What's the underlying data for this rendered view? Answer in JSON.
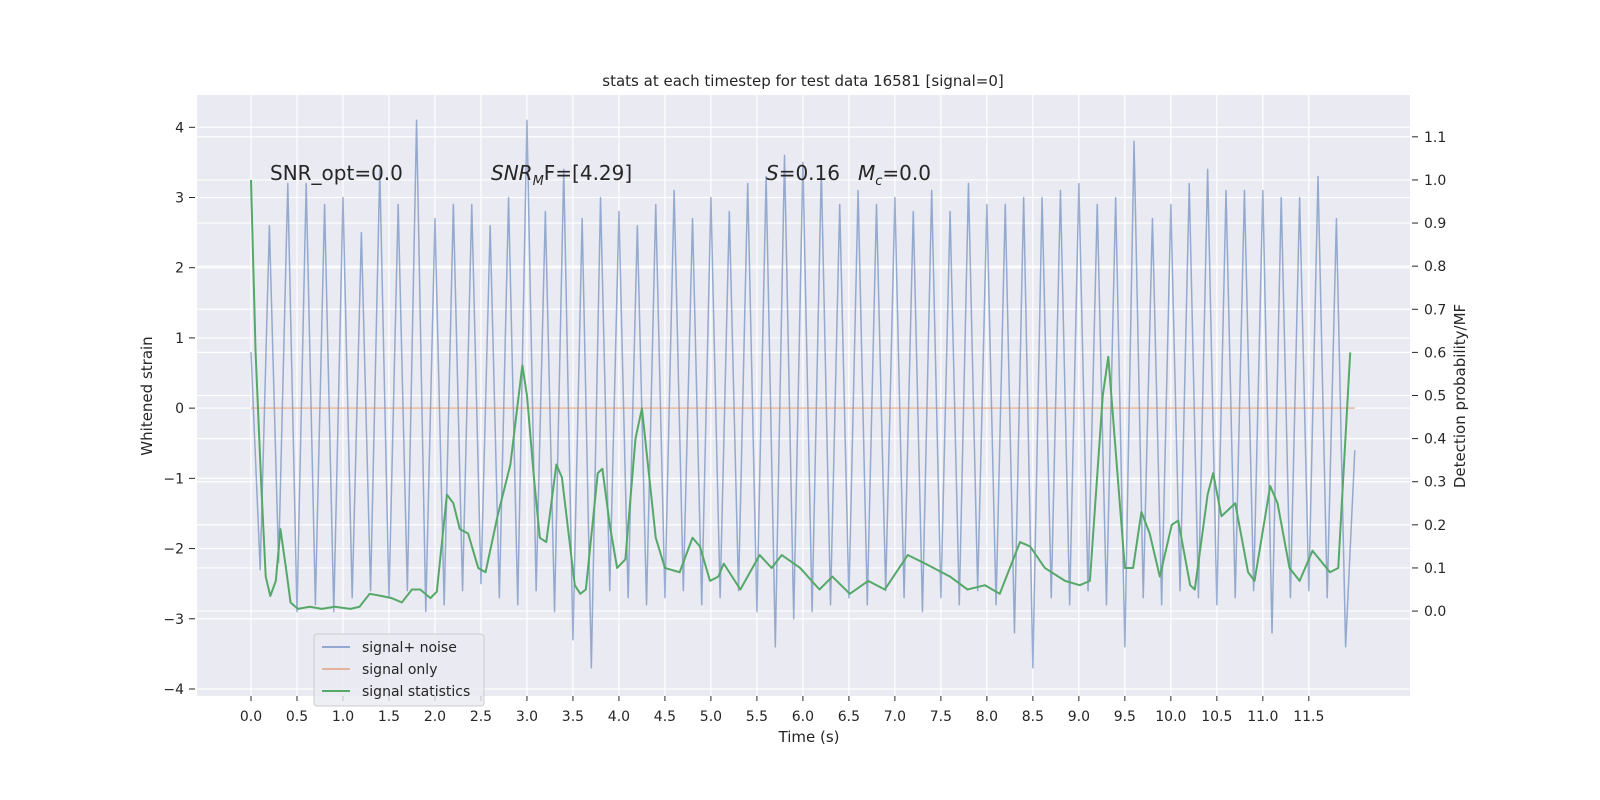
{
  "chart_data": {
    "type": "line",
    "title": "stats at each timestep for test data 16581 [signal=0]",
    "xlabel": "Time (s)",
    "ylabel": "Whitened strain",
    "y2label": "Detection probability/MF",
    "xlim": [
      -0.587,
      12.6
    ],
    "ylim": [
      -4.1,
      4.46
    ],
    "y2lim": [
      -0.197,
      1.197
    ],
    "grid": true,
    "legend": "lower left",
    "xticks": [
      {
        "value": 0,
        "label": "0.0"
      },
      {
        "value": 0.5,
        "label": "0.5"
      },
      {
        "value": 1,
        "label": "1.0"
      },
      {
        "value": 1.5,
        "label": "1.5"
      },
      {
        "value": 2,
        "label": "2.0"
      },
      {
        "value": 2.5,
        "label": "2.5"
      },
      {
        "value": 3,
        "label": "3.0"
      },
      {
        "value": 3.5,
        "label": "3.5"
      },
      {
        "value": 4,
        "label": "4.0"
      },
      {
        "value": 4.5,
        "label": "4.5"
      },
      {
        "value": 5,
        "label": "5.0"
      },
      {
        "value": 5.5,
        "label": "5.5"
      },
      {
        "value": 6,
        "label": "6.0"
      },
      {
        "value": 6.5,
        "label": "6.5"
      },
      {
        "value": 7,
        "label": "7.0"
      },
      {
        "value": 7.5,
        "label": "7.5"
      },
      {
        "value": 8,
        "label": "8.0"
      },
      {
        "value": 8.5,
        "label": "8.5"
      },
      {
        "value": 9,
        "label": "9.0"
      },
      {
        "value": 9.5,
        "label": "9.5"
      },
      {
        "value": 10,
        "label": "10.0"
      },
      {
        "value": 10.5,
        "label": "10.5"
      },
      {
        "value": 11,
        "label": "11.0"
      },
      {
        "value": 11.5,
        "label": "11.5"
      }
    ],
    "yticks": [
      {
        "value": -4,
        "label": "−4"
      },
      {
        "value": -3,
        "label": "−3"
      },
      {
        "value": -2,
        "label": "−2"
      },
      {
        "value": -1,
        "label": "−1"
      },
      0,
      1,
      2,
      3,
      4
    ],
    "y2ticks": [
      {
        "value": 0,
        "label": "0.0"
      },
      {
        "value": 0.1,
        "label": "0.1"
      },
      {
        "value": 0.2,
        "label": "0.2"
      },
      {
        "value": 0.3,
        "label": "0.3"
      },
      {
        "value": 0.4,
        "label": "0.4"
      },
      {
        "value": 0.5,
        "label": "0.5"
      },
      {
        "value": 0.6,
        "label": "0.6"
      },
      {
        "value": 0.7,
        "label": "0.7"
      },
      {
        "value": 0.8,
        "label": "0.8"
      },
      {
        "value": 0.9,
        "label": "0.9"
      },
      {
        "value": 1,
        "label": "1.0"
      },
      {
        "value": 1.1,
        "label": "1.1"
      }
    ],
    "annotations": [
      {
        "parts": [
          "SNR_opt=0.0"
        ]
      },
      {
        "parts": [
          "SNR",
          "M",
          "F=[4.29]"
        ]
      },
      {
        "parts": [
          "S",
          "=0.16"
        ]
      },
      {
        "parts": [
          "M",
          "c",
          "=0.0"
        ]
      }
    ],
    "series": [
      {
        "name": "signal+ noise",
        "color": "#4c72b0",
        "x": [
          0,
          0.1,
          0.2,
          0.3,
          0.4,
          0.5,
          0.6,
          0.7,
          0.8,
          0.9,
          1,
          1.1,
          1.2,
          1.3,
          1.4,
          1.5,
          1.6,
          1.7,
          1.8,
          1.9,
          2,
          2.1,
          2.2,
          2.3,
          2.4,
          2.5,
          2.6,
          2.7,
          2.8,
          2.9,
          3,
          3.1,
          3.2,
          3.3,
          3.4,
          3.5,
          3.6,
          3.7,
          3.8,
          3.9,
          4,
          4.1,
          4.2,
          4.3,
          4.4,
          4.5,
          4.6,
          4.7,
          4.8,
          4.9,
          5,
          5.1,
          5.2,
          5.3,
          5.4,
          5.5,
          5.6,
          5.7,
          5.8,
          5.9,
          6,
          6.1,
          6.2,
          6.3,
          6.4,
          6.5,
          6.6,
          6.7,
          6.8,
          6.9,
          7,
          7.1,
          7.2,
          7.3,
          7.4,
          7.5,
          7.6,
          7.7,
          7.8,
          7.9,
          8,
          8.1,
          8.2,
          8.3,
          8.4,
          8.5,
          8.6,
          8.7,
          8.8,
          8.9,
          9,
          9.1,
          9.2,
          9.3,
          9.4,
          9.5,
          9.6,
          9.7,
          9.8,
          9.9,
          10,
          10.1,
          10.2,
          10.3,
          10.4,
          10.5,
          10.6,
          10.7,
          10.8,
          10.9,
          11,
          11.1,
          11.2,
          11.3,
          11.4,
          11.5,
          11.6,
          11.7,
          11.8,
          11.9,
          12
        ],
        "values": [
          0.8,
          -2.3,
          2.6,
          -2.2,
          3.2,
          -2.9,
          3.2,
          -2.8,
          2.9,
          -2.9,
          3.0,
          -2.7,
          2.5,
          -2.6,
          3.4,
          -2.7,
          2.9,
          -2.6,
          4.1,
          -2.9,
          2.7,
          -2.8,
          2.9,
          -2.6,
          2.9,
          -2.5,
          2.6,
          -2.7,
          3.0,
          -2.8,
          4.1,
          -2.6,
          2.8,
          -2.9,
          3.4,
          -3.3,
          2.7,
          -3.7,
          3.0,
          -2.6,
          2.8,
          -2.7,
          2.6,
          -2.8,
          2.9,
          -2.7,
          3.1,
          -2.6,
          2.7,
          -2.8,
          3.0,
          -2.7,
          2.8,
          -2.6,
          3.2,
          -2.9,
          3.3,
          -3.4,
          3.6,
          -3.0,
          3.5,
          -2.9,
          3.4,
          -2.8,
          2.9,
          -2.7,
          3.1,
          -2.8,
          2.9,
          -2.6,
          3.0,
          -2.7,
          2.8,
          -2.9,
          3.1,
          -2.7,
          2.8,
          -2.8,
          3.2,
          -2.6,
          2.9,
          -2.8,
          2.9,
          -3.2,
          3.0,
          -3.7,
          3.0,
          -2.7,
          3.1,
          -2.8,
          3.2,
          -2.6,
          2.9,
          -2.8,
          3.0,
          -3.4,
          3.8,
          -2.7,
          2.7,
          -2.8,
          2.9,
          -2.6,
          3.2,
          -2.7,
          3.4,
          -2.8,
          3.1,
          -2.7,
          3.1,
          -2.6,
          3.1,
          -3.2,
          3.0,
          -2.7,
          3.0,
          -2.6,
          3.3,
          -2.7,
          2.7,
          -3.4,
          -0.6
        ]
      },
      {
        "name": "signal only",
        "color": "#dd8452",
        "x": [
          0,
          12
        ],
        "values": [
          0,
          0
        ]
      },
      {
        "name": "signal statistics",
        "color": "#55a868",
        "axis": "y2",
        "x": [
          0,
          0.05,
          0.11,
          0.16,
          0.21,
          0.27,
          0.32,
          0.38,
          0.43,
          0.51,
          0.64,
          0.77,
          0.91,
          1.08,
          1.18,
          1.29,
          1.42,
          1.53,
          1.64,
          1.75,
          1.84,
          1.95,
          2.02,
          2.13,
          2.2,
          2.27,
          2.36,
          2.47,
          2.55,
          2.68,
          2.82,
          2.95,
          3.0,
          3.08,
          3.14,
          3.21,
          3.32,
          3.38,
          3.52,
          3.58,
          3.64,
          3.77,
          3.82,
          3.9,
          3.98,
          4.07,
          4.18,
          4.25,
          4.4,
          4.5,
          4.66,
          4.8,
          4.88,
          4.99,
          5.08,
          5.14,
          5.32,
          5.53,
          5.66,
          5.77,
          5.97,
          6.18,
          6.32,
          6.51,
          6.71,
          6.89,
          7.14,
          7.33,
          7.6,
          7.79,
          7.98,
          8.14,
          8.36,
          8.47,
          8.63,
          8.85,
          9.01,
          9.12,
          9.26,
          9.32,
          9.5,
          9.59,
          9.68,
          9.77,
          9.88,
          10.01,
          10.08,
          10.21,
          10.26,
          10.4,
          10.46,
          10.55,
          10.7,
          10.84,
          10.91,
          11.08,
          11.16,
          11.29,
          11.4,
          11.54,
          11.73,
          11.82,
          11.95
        ],
        "values": [
          1.0,
          0.6,
          0.3,
          0.08,
          0.035,
          0.07,
          0.19,
          0.1,
          0.02,
          0.005,
          0.01,
          0.005,
          0.01,
          0.005,
          0.01,
          0.04,
          0.035,
          0.03,
          0.02,
          0.05,
          0.05,
          0.03,
          0.045,
          0.27,
          0.25,
          0.19,
          0.18,
          0.1,
          0.09,
          0.22,
          0.34,
          0.57,
          0.5,
          0.3,
          0.17,
          0.16,
          0.34,
          0.31,
          0.06,
          0.04,
          0.05,
          0.32,
          0.33,
          0.2,
          0.1,
          0.12,
          0.4,
          0.47,
          0.17,
          0.1,
          0.09,
          0.17,
          0.15,
          0.07,
          0.08,
          0.11,
          0.05,
          0.13,
          0.1,
          0.13,
          0.1,
          0.05,
          0.08,
          0.04,
          0.07,
          0.05,
          0.13,
          0.11,
          0.08,
          0.05,
          0.06,
          0.04,
          0.16,
          0.15,
          0.1,
          0.07,
          0.06,
          0.07,
          0.5,
          0.59,
          0.1,
          0.1,
          0.23,
          0.18,
          0.08,
          0.2,
          0.21,
          0.06,
          0.05,
          0.27,
          0.32,
          0.22,
          0.25,
          0.09,
          0.07,
          0.29,
          0.25,
          0.1,
          0.07,
          0.14,
          0.09,
          0.1,
          0.6
        ]
      }
    ]
  }
}
